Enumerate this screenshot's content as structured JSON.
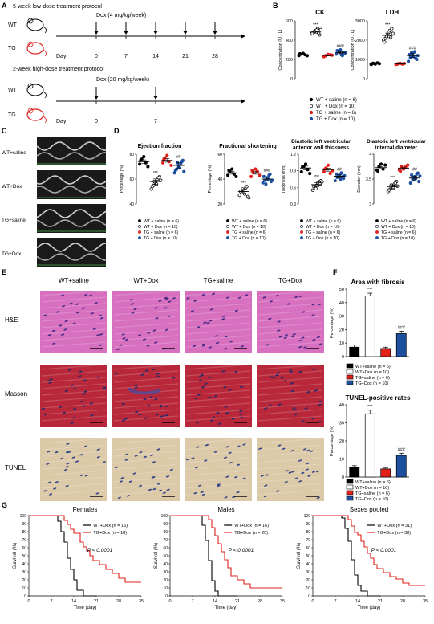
{
  "panels": {
    "a": "A",
    "b": "B",
    "c": "C",
    "d": "D",
    "e": "E",
    "f": "F",
    "g": "G"
  },
  "protocol": {
    "low_title": "5-week low-dose treatment protocol",
    "low_dose": "Dox (4 mg/kg/week)",
    "low_days": [
      "0",
      "7",
      "14",
      "21",
      "28"
    ],
    "high_title": "2-week high-dose treatment protocol",
    "high_dose": "Dox (20 mg/kg/week)",
    "high_days": [
      "0",
      "7"
    ],
    "day_label": "Day:",
    "wt": "WT",
    "tg": "TG"
  },
  "groups": [
    "WT+saline",
    "WT+Dox",
    "TG+saline",
    "TG+Dox"
  ],
  "legend_b": [
    "WT + saline (n = 6)",
    "WT + Dox (n = 10)",
    "TG + saline (n = 6)",
    "TG + Dox (n = 10)"
  ],
  "legend_f": [
    "WT+saline (n = 6)",
    "WT+Dox (n = 10)",
    "TG+saline (n = 6)",
    "TG+Dox (n = 10)"
  ],
  "stains": [
    "H&E",
    "Masson",
    "TUNEL"
  ],
  "annotations": {
    "sig1": "***",
    "sig2": "###",
    "sig3": "##",
    "pval": "P < 0.0001"
  },
  "colors": {
    "black": "#000000",
    "red": "#e0201b",
    "blue": "#1c4fa0",
    "he_pink": "#d870c0",
    "masson": "#b8283a",
    "tunel": "#dcc9a8"
  },
  "chart_data": [
    {
      "id": "ck",
      "type": "scatter",
      "title": "CK",
      "ylabel": "Concentration (U / L)",
      "ylim": [
        0,
        600
      ],
      "yticks": [
        0,
        200,
        400,
        600
      ],
      "series": [
        {
          "name": "WT + saline",
          "mean": 250,
          "values": [
            240,
            255,
            262,
            248,
            238,
            258
          ]
        },
        {
          "name": "WT + Dox",
          "mean": 485,
          "values": [
            465,
            480,
            500,
            520,
            455,
            470,
            490,
            505,
            475,
            510
          ]
        },
        {
          "name": "TG + saline",
          "mean": 242,
          "values": [
            228,
            238,
            252,
            248,
            244,
            236
          ]
        },
        {
          "name": "TG + Dox",
          "mean": 270,
          "values": [
            255,
            285,
            300,
            240,
            262,
            292,
            278,
            248,
            272,
            268
          ]
        }
      ]
    },
    {
      "id": "ldh",
      "type": "scatter",
      "title": "LDH",
      "ylabel": "Concentration (U / L)",
      "ylim": [
        0,
        3000
      ],
      "yticks": [
        0,
        1000,
        2000,
        3000
      ],
      "series": [
        {
          "name": "WT + saline",
          "mean": 780,
          "values": [
            740,
            800,
            760,
            820,
            780,
            770
          ]
        },
        {
          "name": "WT + Dox",
          "mean": 2250,
          "values": [
            2000,
            2100,
            2300,
            2500,
            2600,
            1900,
            2200,
            2400,
            2150,
            2350
          ]
        },
        {
          "name": "TG + saline",
          "mean": 770,
          "values": [
            740,
            780,
            800,
            760,
            790,
            750
          ]
        },
        {
          "name": "TG + Dox",
          "mean": 1200,
          "values": [
            900,
            1100,
            1300,
            1400,
            1000,
            1250,
            1350,
            1150,
            1050,
            1200
          ]
        }
      ]
    },
    {
      "id": "ef",
      "type": "scatter",
      "title": "Ejection fraction",
      "ylabel": "Percentage (%)",
      "ylim": [
        40,
        80
      ],
      "yticks": [
        40,
        60,
        80
      ],
      "series": [
        {
          "name": "WT + saline",
          "mean": 74,
          "values": [
            72,
            76,
            78,
            73,
            70,
            75
          ]
        },
        {
          "name": "WT + Dox",
          "mean": 58,
          "values": [
            52,
            55,
            57,
            60,
            62,
            54,
            58,
            56,
            61,
            59
          ]
        },
        {
          "name": "TG + saline",
          "mean": 75,
          "values": [
            73,
            77,
            79,
            74,
            71,
            76
          ]
        },
        {
          "name": "TG + Dox",
          "mean": 71,
          "values": [
            65,
            68,
            70,
            72,
            75,
            67,
            73,
            69,
            74,
            66
          ]
        }
      ]
    },
    {
      "id": "fs",
      "type": "scatter",
      "title": "Fractional shortening",
      "ylabel": "Percentage (%)",
      "ylim": [
        20,
        60
      ],
      "yticks": [
        20,
        40,
        60
      ],
      "series": [
        {
          "name": "WT + saline",
          "mean": 45,
          "values": [
            43,
            46,
            48,
            44,
            42,
            47
          ]
        },
        {
          "name": "WT + Dox",
          "mean": 30,
          "values": [
            27,
            29,
            31,
            33,
            26,
            30,
            32,
            28,
            34,
            25
          ]
        },
        {
          "name": "TG + saline",
          "mean": 45,
          "values": [
            42,
            45,
            48,
            46,
            43,
            47
          ]
        },
        {
          "name": "TG + Dox",
          "mean": 40,
          "values": [
            37,
            39,
            41,
            43,
            38,
            42,
            36,
            40,
            44,
            39
          ]
        }
      ]
    },
    {
      "id": "lvaw",
      "type": "scatter",
      "title": "Diastolic left ventricular anterior wall thickness",
      "ylabel": "Thickness (mm)",
      "ylim": [
        0.3,
        1.2
      ],
      "yticks": [
        0.3,
        0.6,
        0.9,
        1.2
      ],
      "series": [
        {
          "name": "WT + saline",
          "mean": 0.95,
          "values": [
            0.88,
            0.98,
            1.02,
            0.92,
            0.85,
            0.97
          ]
        },
        {
          "name": "WT + Dox",
          "mean": 0.65,
          "values": [
            0.55,
            0.6,
            0.64,
            0.7,
            0.72,
            0.62,
            0.58,
            0.68,
            0.66,
            0.7
          ]
        },
        {
          "name": "TG + saline",
          "mean": 0.92,
          "values": [
            0.88,
            0.95,
            1.0,
            0.85,
            0.9,
            0.93
          ]
        },
        {
          "name": "TG + Dox",
          "mean": 0.8,
          "values": [
            0.72,
            0.78,
            0.82,
            0.86,
            0.76,
            0.84,
            0.8,
            0.74,
            0.79,
            0.81
          ]
        }
      ]
    },
    {
      "id": "lvid",
      "type": "scatter",
      "title": "Diastolic left ventricular internal diameter",
      "ylabel": "Diameter (mm)",
      "ylim": [
        3,
        4
      ],
      "yticks": [
        3,
        3.5,
        4
      ],
      "series": [
        {
          "name": "WT + saline",
          "mean": 3.73,
          "values": [
            3.68,
            3.75,
            3.8,
            3.7,
            3.78,
            3.66
          ]
        },
        {
          "name": "WT + Dox",
          "mean": 3.35,
          "values": [
            3.25,
            3.3,
            3.35,
            3.4,
            3.45,
            3.28,
            3.38,
            3.32,
            3.42,
            3.36
          ]
        },
        {
          "name": "TG + saline",
          "mean": 3.72,
          "values": [
            3.68,
            3.75,
            3.7,
            3.74,
            3.78,
            3.66
          ]
        },
        {
          "name": "TG + Dox",
          "mean": 3.52,
          "values": [
            3.42,
            3.5,
            3.55,
            3.6,
            3.45,
            3.58,
            3.48,
            3.52,
            3.62,
            3.56
          ]
        }
      ]
    },
    {
      "id": "fibrosis",
      "type": "bar",
      "title": "Area with fibrosis",
      "ylabel": "Percentage (%)",
      "ylim": [
        0,
        50
      ],
      "yticks": [
        0,
        10,
        20,
        30,
        40,
        50
      ],
      "categories": [
        "WT+saline",
        "WT+Dox",
        "TG+saline",
        "TG+Dox"
      ],
      "values": [
        7,
        45,
        6,
        17
      ],
      "errors": [
        1.5,
        2,
        1,
        1.8
      ]
    },
    {
      "id": "tunel",
      "type": "bar",
      "title": "TUNEL-positive rates",
      "ylabel": "Percentage (%)",
      "ylim": [
        0,
        40
      ],
      "yticks": [
        0,
        10,
        20,
        30,
        40
      ],
      "categories": [
        "WT+saline",
        "WT+Dox",
        "TG+saline",
        "TG+Dox"
      ],
      "values": [
        5.5,
        35,
        4.5,
        12
      ],
      "errors": [
        0.8,
        2,
        0.5,
        1.2
      ]
    },
    {
      "id": "females",
      "type": "line",
      "title": "Females",
      "xlabel": "Time (day)",
      "ylabel": "Survival (%)",
      "xlim": [
        0,
        35
      ],
      "ylim": [
        0,
        100
      ],
      "xticks": [
        0,
        7,
        14,
        21,
        28,
        35
      ],
      "yticks": [
        0,
        10,
        20,
        30,
        40,
        50,
        60,
        70,
        80,
        90,
        100
      ],
      "series": [
        {
          "name": "WT+Dox (n = 15)",
          "steps": [
            [
              0,
              100
            ],
            [
              8,
              100
            ],
            [
              9,
              93
            ],
            [
              10,
              80
            ],
            [
              11,
              67
            ],
            [
              12,
              47
            ],
            [
              13,
              33
            ],
            [
              14,
              20
            ],
            [
              15,
              7
            ],
            [
              17,
              0
            ],
            [
              21,
              0
            ]
          ]
        },
        {
          "name": "TG+Dox (n = 18)",
          "steps": [
            [
              0,
              100
            ],
            [
              10,
              100
            ],
            [
              11,
              94
            ],
            [
              12,
              89
            ],
            [
              13,
              83
            ],
            [
              14,
              78
            ],
            [
              16,
              67
            ],
            [
              17,
              61
            ],
            [
              18,
              56
            ],
            [
              19,
              50
            ],
            [
              20,
              44
            ],
            [
              22,
              39
            ],
            [
              24,
              33
            ],
            [
              26,
              28
            ],
            [
              28,
              22
            ],
            [
              30,
              17
            ],
            [
              35,
              17
            ]
          ]
        }
      ],
      "pvalue": "P < 0.0001"
    },
    {
      "id": "males",
      "type": "line",
      "title": "Males",
      "xlabel": "Time (day)",
      "ylabel": "Survival (%)",
      "xlim": [
        0,
        35
      ],
      "ylim": [
        0,
        100
      ],
      "xticks": [
        0,
        7,
        14,
        21,
        28,
        35
      ],
      "yticks": [
        0,
        10,
        20,
        30,
        40,
        50,
        60,
        70,
        80,
        90,
        100
      ],
      "series": [
        {
          "name": "WT+Dox (n = 16)",
          "steps": [
            [
              0,
              100
            ],
            [
              9,
              100
            ],
            [
              10,
              88
            ],
            [
              11,
              69
            ],
            [
              12,
              44
            ],
            [
              13,
              19
            ],
            [
              14,
              6
            ],
            [
              15,
              0
            ],
            [
              21,
              0
            ]
          ]
        },
        {
          "name": "TG+Dox (n = 20)",
          "steps": [
            [
              0,
              100
            ],
            [
              11,
              100
            ],
            [
              12,
              95
            ],
            [
              13,
              85
            ],
            [
              14,
              75
            ],
            [
              15,
              65
            ],
            [
              16,
              55
            ],
            [
              17,
              45
            ],
            [
              18,
              35
            ],
            [
              19,
              25
            ],
            [
              21,
              20
            ],
            [
              23,
              15
            ],
            [
              25,
              10
            ],
            [
              35,
              10
            ]
          ]
        }
      ],
      "pvalue": "P < 0.0001"
    },
    {
      "id": "pooled",
      "type": "line",
      "title": "Sexes pooled",
      "xlabel": "Time (day)",
      "ylabel": "Survival (%)",
      "xlim": [
        0,
        35
      ],
      "ylim": [
        0,
        100
      ],
      "xticks": [
        0,
        7,
        14,
        21,
        28,
        35
      ],
      "yticks": [
        0,
        10,
        20,
        30,
        40,
        50,
        60,
        70,
        80,
        90,
        100
      ],
      "series": [
        {
          "name": "WT+Dox (n = 31)",
          "steps": [
            [
              0,
              100
            ],
            [
              8,
              100
            ],
            [
              9,
              97
            ],
            [
              10,
              84
            ],
            [
              11,
              68
            ],
            [
              12,
              45
            ],
            [
              13,
              26
            ],
            [
              14,
              13
            ],
            [
              15,
              6
            ],
            [
              17,
              0
            ],
            [
              21,
              0
            ]
          ]
        },
        {
          "name": "TG+Dox (n = 38)",
          "steps": [
            [
              0,
              100
            ],
            [
              10,
              100
            ],
            [
              11,
              95
            ],
            [
              12,
              87
            ],
            [
              13,
              79
            ],
            [
              14,
              76
            ],
            [
              15,
              68
            ],
            [
              16,
              61
            ],
            [
              17,
              53
            ],
            [
              18,
              47
            ],
            [
              19,
              39
            ],
            [
              20,
              34
            ],
            [
              22,
              29
            ],
            [
              24,
              24
            ],
            [
              26,
              21
            ],
            [
              28,
              16
            ],
            [
              30,
              13
            ],
            [
              35,
              13
            ]
          ]
        }
      ],
      "pvalue": "P < 0.0001"
    }
  ]
}
